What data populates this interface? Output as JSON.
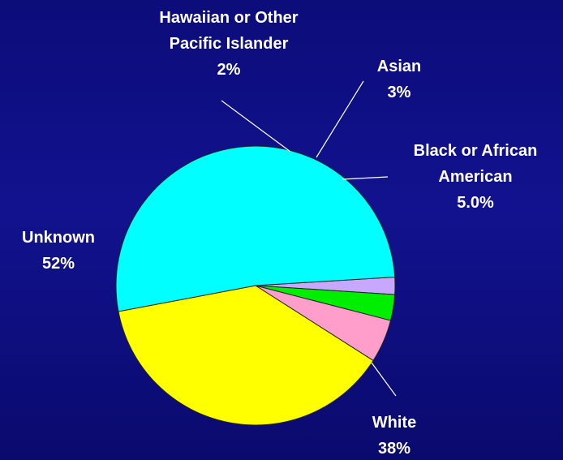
{
  "chart_data": {
    "type": "pie",
    "title": "",
    "slices": [
      {
        "category": "Hawaiian or Other Pacific Islander",
        "value": 2,
        "label_lines": [
          "Hawaiian or Other",
          "Pacific Islander",
          "2%"
        ],
        "color": "#c8a8ff"
      },
      {
        "category": "Asian",
        "value": 3,
        "label_lines": [
          "Asian",
          "3%"
        ],
        "color": "#00ee00"
      },
      {
        "category": "Black or African American",
        "value": 5.0,
        "label_lines": [
          "Black or African",
          "American",
          "5.0%"
        ],
        "color": "#ff9ecb"
      },
      {
        "category": "White",
        "value": 38,
        "label_lines": [
          "White",
          "38%"
        ],
        "color": "#ffff00"
      },
      {
        "category": "Unknown",
        "value": 52,
        "label_lines": [
          "Unknown",
          "52%"
        ],
        "color": "#00ffff"
      }
    ],
    "legend": "none",
    "data_labels": "outside"
  }
}
